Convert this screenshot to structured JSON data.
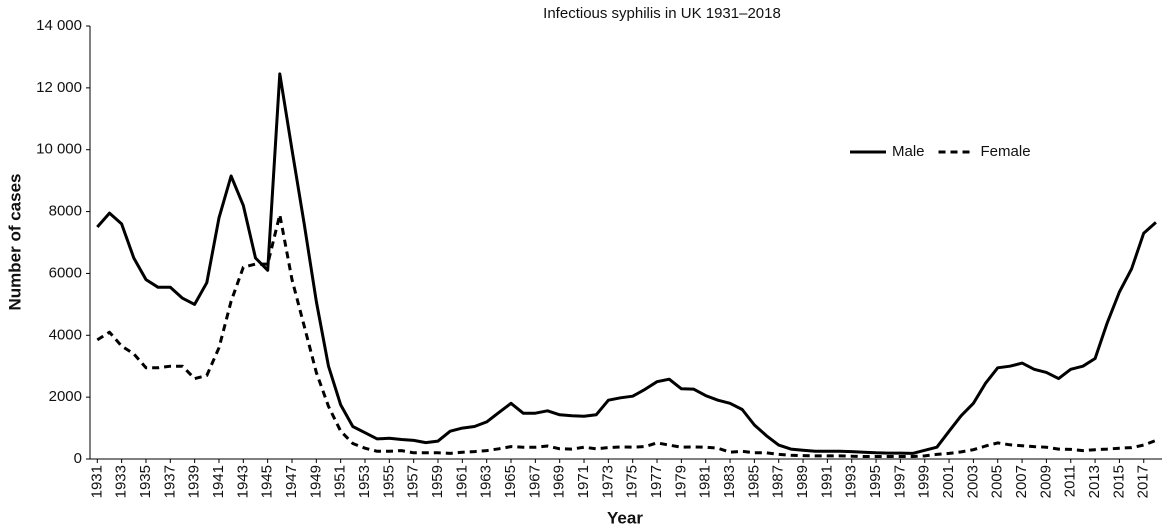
{
  "chart_data": {
    "type": "line",
    "title": "Infectious syphilis in UK 1931–2018",
    "x_label": "Year",
    "y_label": "Number of cases",
    "x": [
      1931,
      1932,
      1933,
      1934,
      1935,
      1936,
      1937,
      1938,
      1939,
      1940,
      1941,
      1942,
      1943,
      1944,
      1945,
      1946,
      1947,
      1948,
      1949,
      1950,
      1951,
      1952,
      1953,
      1954,
      1955,
      1956,
      1957,
      1958,
      1959,
      1960,
      1961,
      1962,
      1963,
      1964,
      1965,
      1966,
      1967,
      1968,
      1969,
      1970,
      1971,
      1972,
      1973,
      1974,
      1975,
      1976,
      1977,
      1978,
      1979,
      1980,
      1981,
      1982,
      1983,
      1984,
      1985,
      1986,
      1987,
      1988,
      1989,
      1990,
      1991,
      1992,
      1993,
      1994,
      1995,
      1996,
      1997,
      1998,
      1999,
      2000,
      2001,
      2002,
      2003,
      2004,
      2005,
      2006,
      2007,
      2008,
      2009,
      2010,
      2011,
      2012,
      2013,
      2014,
      2015,
      2016,
      2017,
      2018
    ],
    "series": [
      {
        "name": "Male",
        "color": "#000000",
        "dash": "solid",
        "values": [
          7500,
          7950,
          7600,
          6500,
          5800,
          5550,
          5550,
          5200,
          5000,
          5700,
          7800,
          9150,
          8200,
          6500,
          6100,
          12450,
          10000,
          7600,
          5100,
          3000,
          1750,
          1050,
          850,
          650,
          670,
          630,
          600,
          530,
          580,
          900,
          1000,
          1050,
          1200,
          1500,
          1800,
          1480,
          1480,
          1560,
          1430,
          1400,
          1380,
          1430,
          1900,
          1980,
          2030,
          2250,
          2500,
          2580,
          2270,
          2260,
          2050,
          1900,
          1800,
          1600,
          1100,
          750,
          450,
          320,
          280,
          250,
          250,
          250,
          240,
          220,
          200,
          190,
          190,
          180,
          280,
          380,
          900,
          1400,
          1800,
          2450,
          2950,
          3000,
          3100,
          2900,
          2800,
          2600,
          2900,
          3000,
          3250,
          4400,
          5400,
          6150,
          7300,
          7650
        ]
      },
      {
        "name": "Female",
        "color": "#000000",
        "dash": "dashed",
        "values": [
          3850,
          4100,
          3650,
          3400,
          2950,
          2950,
          3000,
          3000,
          2600,
          2700,
          3600,
          5100,
          6200,
          6300,
          6300,
          7900,
          5800,
          4300,
          2800,
          1700,
          900,
          500,
          350,
          250,
          250,
          270,
          200,
          200,
          200,
          180,
          220,
          240,
          270,
          330,
          400,
          380,
          380,
          420,
          330,
          320,
          380,
          330,
          370,
          390,
          380,
          400,
          520,
          450,
          380,
          390,
          380,
          350,
          220,
          250,
          200,
          200,
          150,
          120,
          110,
          100,
          100,
          100,
          90,
          80,
          80,
          80,
          80,
          80,
          100,
          150,
          180,
          230,
          300,
          420,
          520,
          460,
          430,
          400,
          380,
          320,
          310,
          270,
          300,
          320,
          350,
          370,
          450,
          600
        ]
      }
    ],
    "xlim": [
      1930.4,
      2018.5
    ],
    "xticks": [
      1931,
      1933,
      1935,
      1937,
      1939,
      1941,
      1943,
      1945,
      1947,
      1949,
      1951,
      1953,
      1955,
      1957,
      1959,
      1961,
      1963,
      1965,
      1967,
      1969,
      1971,
      1973,
      1975,
      1977,
      1979,
      1981,
      1983,
      1985,
      1987,
      1989,
      1991,
      1993,
      1995,
      1997,
      1999,
      2001,
      2003,
      2005,
      2007,
      2009,
      2011,
      2013,
      2015,
      2017
    ],
    "ylim": [
      0,
      14000
    ],
    "yticks": [
      0,
      2000,
      4000,
      6000,
      8000,
      {
        "value": 10000,
        "label": "10 000"
      },
      {
        "value": 12000,
        "label": "12 000"
      },
      {
        "value": 14000,
        "label": "14 000"
      }
    ],
    "grid": false,
    "legend": "upper right"
  }
}
